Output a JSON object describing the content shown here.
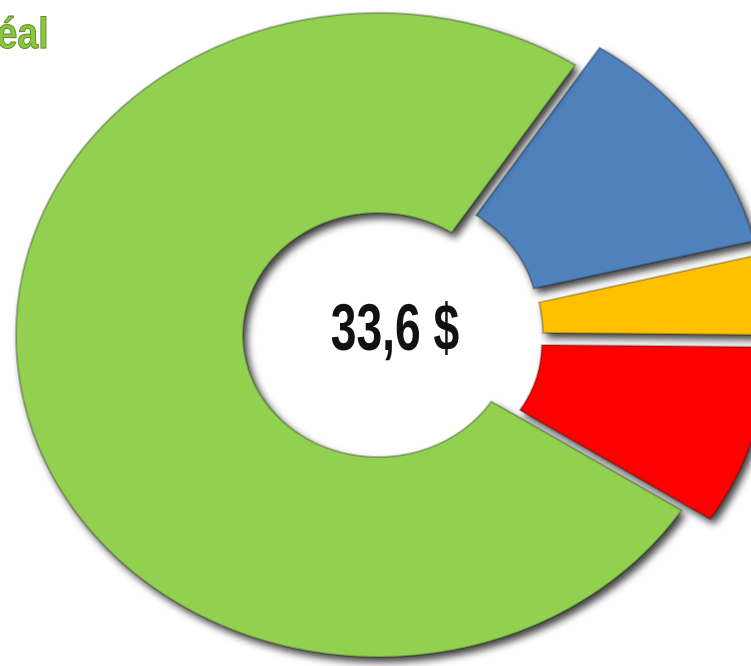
{
  "chart_data": {
    "type": "donut",
    "title": "éal",
    "center_label": "33,6 $",
    "values": [
      12,
      4,
      9,
      75
    ],
    "colors": [
      "#4f81bd",
      "#ffc000",
      "#ff0000",
      "#92d050"
    ],
    "exploded": [
      true,
      true,
      true,
      false
    ]
  }
}
